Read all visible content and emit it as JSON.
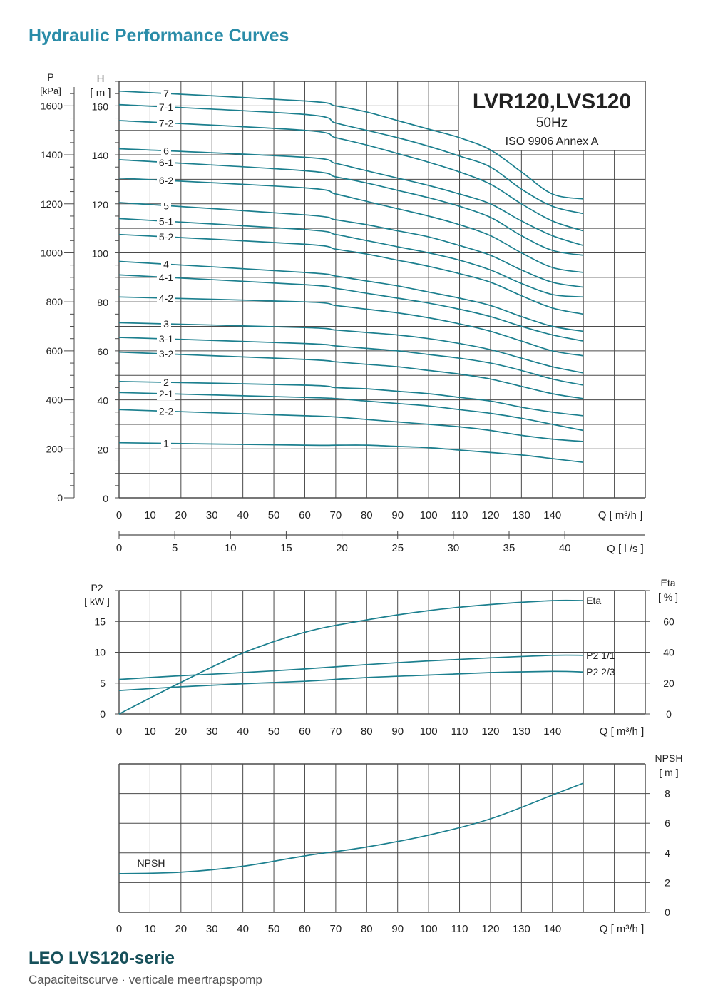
{
  "page": {
    "title": "Hydraulic Performance Curves",
    "footer_title": "LEO LVS120-serie",
    "footer_sub": "Capaciteitscurve  ·  verticale meertrapspomp"
  },
  "colors": {
    "curve": "#1b7f8e",
    "grid": "#4a4a4a",
    "title": "#2a8ca8",
    "footer": "#16505a"
  },
  "chart_data": [
    {
      "type": "line",
      "title": "LVR120,LVS120",
      "subtitle": "50Hz",
      "standard": "ISO 9906 Annex A",
      "xlabel": "Q [ m³/h ]",
      "xlabel2": "Q [ l /s ]",
      "ylabel": "H [ m ]",
      "ylabel_left": "P [kPa]",
      "xlim": [
        0,
        170
      ],
      "ylim": [
        0,
        170
      ],
      "x_ticks": [
        0,
        10,
        20,
        30,
        40,
        50,
        60,
        70,
        80,
        90,
        100,
        110,
        120,
        130,
        140
      ],
      "y_ticks": [
        0,
        20,
        40,
        60,
        80,
        100,
        120,
        140,
        160
      ],
      "p_ticks": [
        0,
        200,
        400,
        600,
        800,
        1000,
        1200,
        1400,
        1600
      ],
      "ls_ticks": [
        0,
        5,
        10,
        15,
        20,
        25,
        30,
        35,
        40
      ],
      "x": [
        0,
        60,
        70,
        80,
        90,
        100,
        110,
        120,
        130,
        140,
        150
      ],
      "series": [
        {
          "name": "7",
          "values": [
            166,
            162,
            160,
            157.5,
            154,
            150.5,
            147,
            142,
            133,
            124,
            122
          ]
        },
        {
          "name": "7-1",
          "values": [
            160.5,
            156.5,
            153,
            150,
            147,
            143.5,
            139.5,
            135,
            126,
            119,
            116
          ]
        },
        {
          "name": "7-2",
          "values": [
            154,
            150,
            147,
            144,
            140.5,
            137,
            133,
            128,
            120,
            113,
            109
          ]
        },
        {
          "name": "6",
          "values": [
            142.5,
            139,
            136.5,
            133.5,
            130.5,
            127.5,
            124,
            120,
            113,
            107,
            103
          ]
        },
        {
          "name": "6-1",
          "values": [
            138,
            133.5,
            131,
            128.5,
            125.5,
            122.5,
            119,
            114.5,
            107,
            101,
            99
          ]
        },
        {
          "name": "6-2",
          "values": [
            130.5,
            126.5,
            124,
            121,
            118,
            115,
            111.5,
            107,
            100,
            94,
            92
          ]
        },
        {
          "name": "5",
          "values": [
            120.5,
            115.5,
            113.5,
            111.5,
            109,
            106.5,
            103,
            99,
            93,
            88,
            86
          ]
        },
        {
          "name": "5-1",
          "values": [
            114,
            109.5,
            107.5,
            105,
            102.5,
            100,
            97,
            93,
            87.5,
            83,
            82
          ]
        },
        {
          "name": "5-2",
          "values": [
            107.5,
            103.5,
            101.5,
            99.5,
            97,
            94.5,
            91.5,
            88,
            82.5,
            77.5,
            75
          ]
        },
        {
          "name": "4",
          "values": [
            96.5,
            92,
            90.5,
            88.5,
            86.5,
            84,
            81.5,
            78.5,
            74,
            70,
            68
          ]
        },
        {
          "name": "4-1",
          "values": [
            91,
            87,
            85.5,
            83.5,
            81.5,
            79.5,
            77,
            74,
            70,
            66.5,
            64
          ]
        },
        {
          "name": "4-2",
          "values": [
            82,
            80,
            78.5,
            77,
            75.5,
            73.5,
            71,
            68,
            64,
            60,
            58
          ]
        },
        {
          "name": "3",
          "values": [
            71.5,
            69.5,
            68.5,
            67.5,
            66.5,
            65,
            63,
            60.5,
            57,
            53.5,
            51
          ]
        },
        {
          "name": "3-1",
          "values": [
            65.5,
            63,
            62,
            61,
            60,
            58.5,
            57,
            55,
            52,
            48.5,
            46
          ]
        },
        {
          "name": "3-2",
          "values": [
            59.5,
            56.5,
            55.5,
            54.5,
            53.5,
            52,
            50.5,
            48.5,
            45.5,
            42.5,
            40.5
          ]
        },
        {
          "name": "2",
          "values": [
            47.5,
            46,
            45,
            44.5,
            43.5,
            42.5,
            41,
            39.5,
            37,
            35,
            33.5
          ]
        },
        {
          "name": "2-1",
          "values": [
            43,
            41,
            40.5,
            39.5,
            38.5,
            37.5,
            36,
            34.5,
            32.5,
            30,
            27.5
          ]
        },
        {
          "name": "2-2",
          "values": [
            36,
            33.5,
            33,
            32,
            31,
            30,
            29,
            27.5,
            25.5,
            24,
            23
          ]
        },
        {
          "name": "1",
          "values": [
            22.5,
            21.5,
            21.5,
            21.5,
            21,
            20.5,
            19.5,
            18.5,
            17.5,
            16,
            14.5
          ]
        }
      ]
    },
    {
      "type": "line",
      "xlabel": "Q [ m³/h ]",
      "ylabel": "P2 [ kW ]",
      "ylabel_right": "Eta [ % ]",
      "xlim": [
        0,
        170
      ],
      "ylim": [
        0,
        20
      ],
      "ylim_right": [
        0,
        80
      ],
      "x_ticks": [
        0,
        10,
        20,
        30,
        40,
        50,
        60,
        70,
        80,
        90,
        100,
        110,
        120,
        130,
        140
      ],
      "y_ticks": [
        0,
        5,
        10,
        15
      ],
      "y_ticks_right": [
        0,
        20,
        40,
        60
      ],
      "x": [
        0,
        20,
        40,
        60,
        80,
        100,
        120,
        140,
        150
      ],
      "series": [
        {
          "name": "Eta",
          "axis": "right",
          "values": [
            0,
            20.5,
            39.5,
            53,
            61,
            67,
            71,
            73.5,
            73.5
          ]
        },
        {
          "name": "P2  1/1",
          "axis": "left",
          "values": [
            5.6,
            6.2,
            6.7,
            7.3,
            8.0,
            8.6,
            9.1,
            9.5,
            9.5
          ]
        },
        {
          "name": "P2  2/3",
          "axis": "left",
          "values": [
            3.8,
            4.4,
            4.9,
            5.3,
            5.9,
            6.3,
            6.7,
            6.9,
            6.8
          ]
        }
      ]
    },
    {
      "type": "line",
      "xlabel": "Q [ m³/h ]",
      "ylabel_right": "NPSH [ m ]",
      "xlim": [
        0,
        170
      ],
      "ylim": [
        0,
        10
      ],
      "x_ticks": [
        0,
        10,
        20,
        30,
        40,
        50,
        60,
        70,
        80,
        90,
        100,
        110,
        120,
        130,
        140
      ],
      "y_ticks_right": [
        0,
        2,
        4,
        6,
        8
      ],
      "x": [
        0,
        20,
        40,
        60,
        80,
        100,
        120,
        140,
        150
      ],
      "series": [
        {
          "name": "NPSH",
          "values": [
            2.6,
            2.7,
            3.1,
            3.8,
            4.4,
            5.2,
            6.3,
            7.9,
            8.7
          ]
        }
      ]
    }
  ]
}
